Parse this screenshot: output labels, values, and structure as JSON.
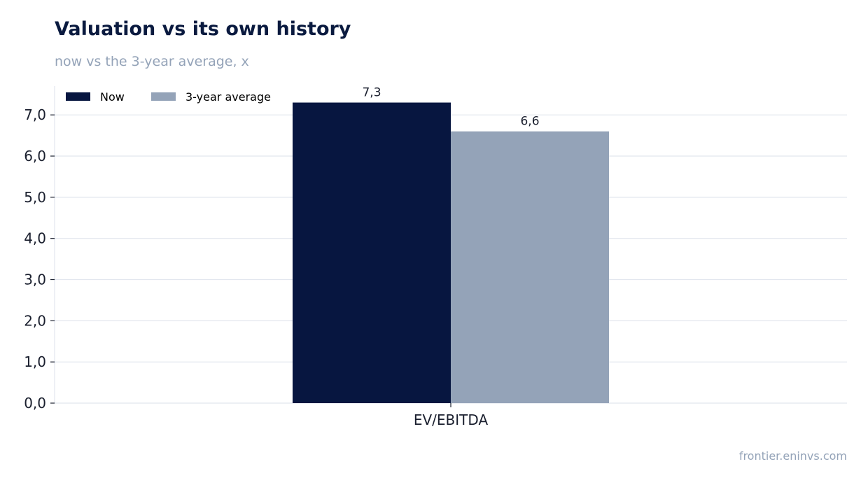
{
  "header": {
    "title": "Valuation vs its own history",
    "subtitle": "now vs the 3-year average, x"
  },
  "footer": {
    "source": "frontier.eninvs.com"
  },
  "colors": {
    "now": "#071640",
    "average": "#94a3b8",
    "grid": "#e2e6ee",
    "text": "#1a1f2e"
  },
  "chart_data": {
    "type": "bar",
    "categories": [
      "EV/EBITDA"
    ],
    "series": [
      {
        "name": "Now",
        "values": [
          7.3
        ],
        "value_labels": [
          "7,3"
        ]
      },
      {
        "name": "3-year average",
        "values": [
          6.6
        ],
        "value_labels": [
          "6,6"
        ]
      }
    ],
    "ylim": [
      0,
      7.7
    ],
    "yticks": [
      0,
      1,
      2,
      3,
      4,
      5,
      6,
      7
    ],
    "ytick_labels": [
      "0,0",
      "1,0",
      "2,0",
      "3,0",
      "4,0",
      "5,0",
      "6,0",
      "7,0"
    ],
    "grid": true,
    "legend_position": "top-left"
  }
}
